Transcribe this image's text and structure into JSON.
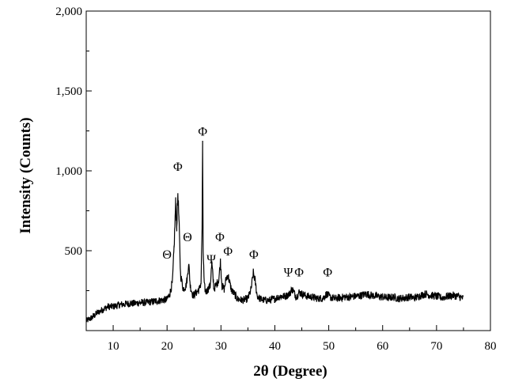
{
  "chart_data": {
    "type": "line",
    "title": "",
    "xlabel": "2θ (Degree)",
    "ylabel": "Intensity (Counts)",
    "xlim": [
      5,
      80
    ],
    "ylim": [
      0,
      2000
    ],
    "xticks": [
      10,
      20,
      30,
      40,
      50,
      60,
      70,
      80
    ],
    "xtick_labels": [
      "10",
      "20",
      "30",
      "40",
      "50",
      "60",
      "70",
      "80"
    ],
    "yticks": [
      500,
      1000,
      1500,
      2000
    ],
    "ytick_labels": [
      "500",
      "1,000",
      "1,500",
      "2,000"
    ],
    "grid": false,
    "legend": "none",
    "line_color": "#000000",
    "series": [
      {
        "x": [
          5,
          6,
          7,
          8,
          9,
          10,
          11,
          12,
          13,
          14,
          15,
          16,
          17,
          18,
          19,
          20,
          20.5,
          21,
          21.3,
          21.6,
          21.8,
          22,
          22.2,
          22.5,
          23,
          23.5,
          23.8,
          24,
          24.3,
          24.8,
          25.5,
          26,
          26.3,
          26.5,
          26.6,
          26.7,
          26.9,
          27.2,
          27.6,
          28,
          28.3,
          28.7,
          29.2,
          29.6,
          29.9,
          30.2,
          30.6,
          31,
          31.3,
          31.6,
          32,
          32.5,
          33,
          34,
          35,
          35.6,
          36,
          36.3,
          36.7,
          37.2,
          38,
          39,
          40,
          41,
          42,
          42.7,
          43.2,
          44,
          44.5,
          45,
          46,
          47,
          48,
          49,
          49.6,
          50.2,
          51,
          52,
          53,
          54,
          55,
          56,
          57,
          58,
          59,
          60,
          61,
          62,
          63,
          64,
          65,
          66,
          67,
          68,
          69,
          70,
          71,
          72,
          73,
          74,
          75
        ],
        "y": [
          60,
          80,
          110,
          130,
          150,
          150,
          160,
          165,
          170,
          170,
          175,
          175,
          180,
          185,
          190,
          195,
          230,
          300,
          520,
          800,
          650,
          860,
          700,
          350,
          260,
          280,
          340,
          430,
          280,
          220,
          240,
          260,
          300,
          650,
          1140,
          500,
          280,
          240,
          260,
          280,
          420,
          260,
          290,
          320,
          430,
          280,
          260,
          330,
          350,
          300,
          250,
          230,
          200,
          190,
          200,
          260,
          360,
          320,
          220,
          200,
          190,
          190,
          200,
          215,
          215,
          230,
          260,
          210,
          240,
          230,
          215,
          210,
          200,
          205,
          230,
          210,
          200,
          205,
          210,
          210,
          215,
          220,
          230,
          220,
          215,
          210,
          205,
          210,
          200,
          205,
          210,
          205,
          220,
          230,
          220,
          215,
          205,
          215,
          220,
          215,
          200
        ]
      }
    ],
    "annotations": [
      {
        "text": "Θ",
        "x": 20,
        "y": 450
      },
      {
        "text": "Φ",
        "x": 22,
        "y": 1000
      },
      {
        "text": "Θ",
        "x": 23.8,
        "y": 560
      },
      {
        "text": "Φ",
        "x": 26.6,
        "y": 1220
      },
      {
        "text": "Ψ",
        "x": 28.2,
        "y": 420
      },
      {
        "text": "Φ",
        "x": 29.8,
        "y": 560
      },
      {
        "text": "Φ",
        "x": 31.3,
        "y": 470
      },
      {
        "text": "Φ",
        "x": 36.1,
        "y": 450
      },
      {
        "text": "Ψ",
        "x": 42.5,
        "y": 340
      },
      {
        "text": "Φ",
        "x": 44.5,
        "y": 340
      },
      {
        "text": "Φ",
        "x": 49.8,
        "y": 340
      }
    ]
  }
}
